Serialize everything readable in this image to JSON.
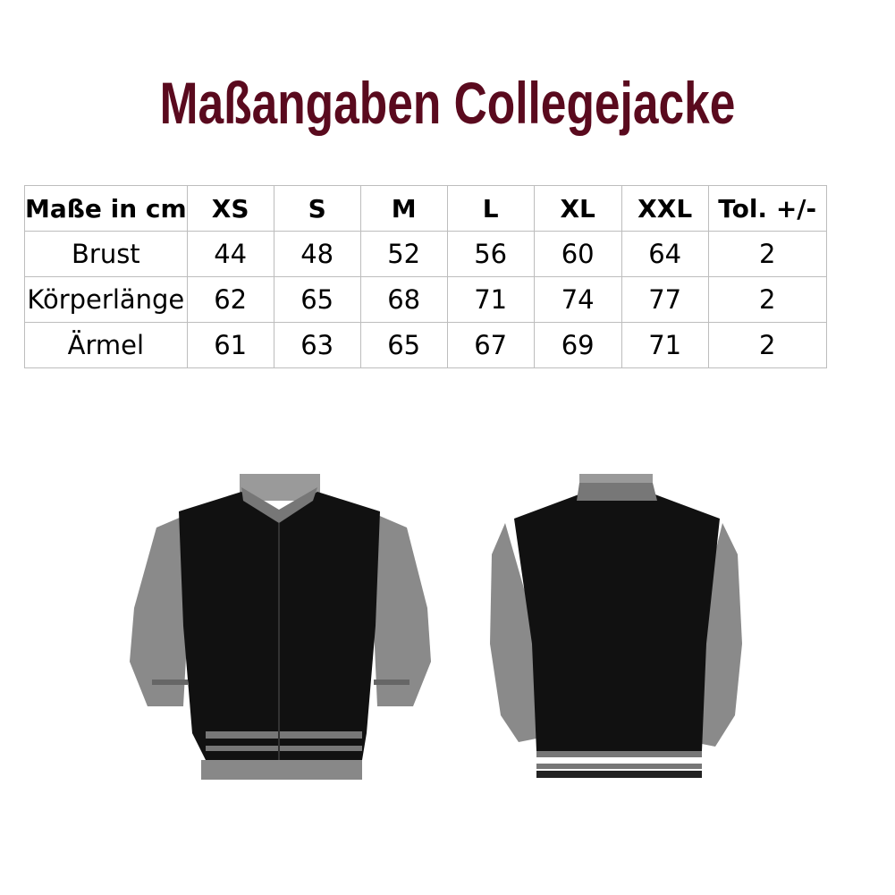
{
  "title": "Maßangaben Collegejacke",
  "table": {
    "headers": [
      "Maße in cm",
      "XS",
      "S",
      "M",
      "L",
      "XL",
      "XXL",
      "Tol. +/-"
    ],
    "rows": [
      [
        "Brust",
        "44",
        "48",
        "52",
        "56",
        "60",
        "64",
        "2"
      ],
      [
        "Körperlänge",
        "62",
        "65",
        "68",
        "71",
        "74",
        "77",
        "2"
      ],
      [
        "Ärmel",
        "61",
        "63",
        "65",
        "67",
        "69",
        "71",
        "2"
      ]
    ]
  },
  "colors": {
    "title": "#5a0a1e",
    "jacket_body": "#111111",
    "jacket_sleeves": "#8a8a8a"
  }
}
